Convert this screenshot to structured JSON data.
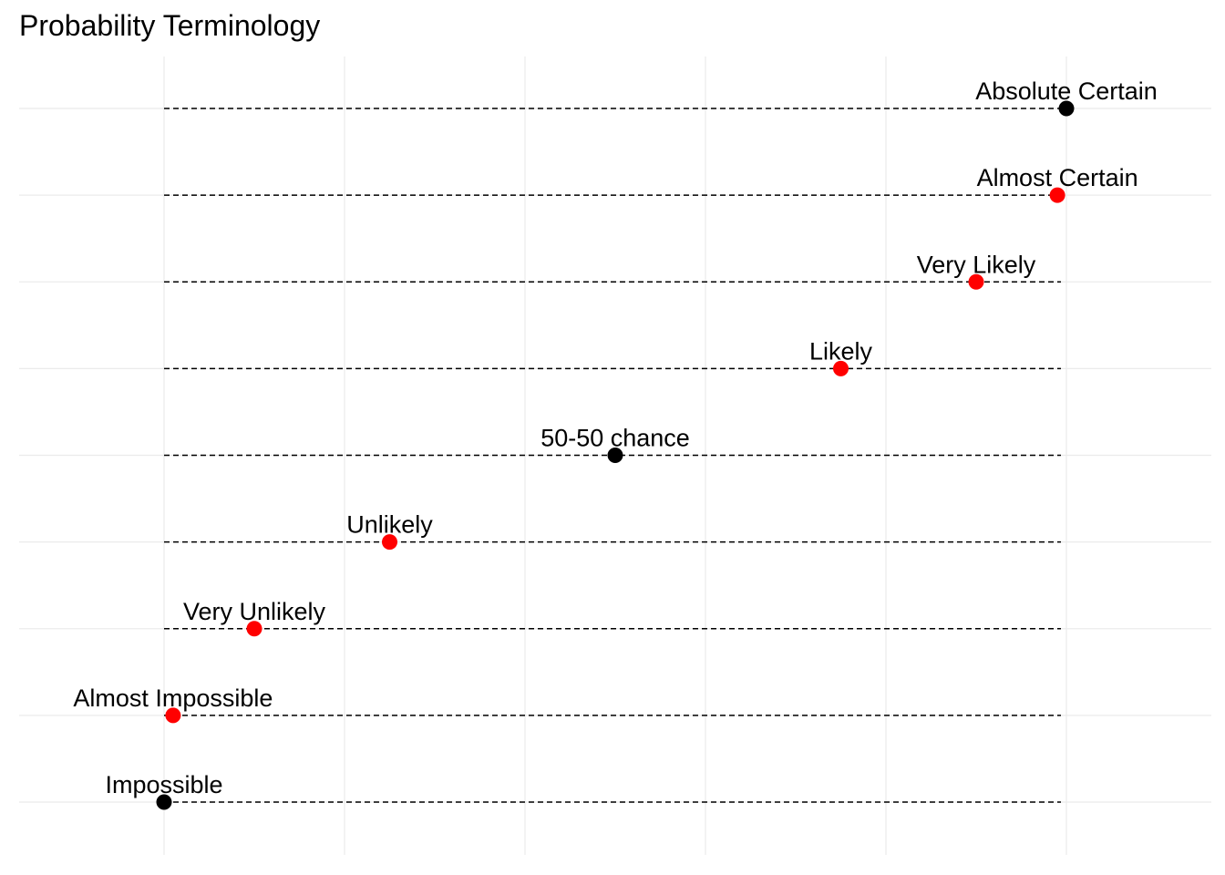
{
  "chart_data": {
    "type": "scatter",
    "title": "Probability Terminology",
    "xlabel": "",
    "ylabel": "",
    "xlim": [
      -0.08,
      1.08
    ],
    "grid": true,
    "guide_range": [
      0,
      1
    ],
    "highlight_color": "#ff0000",
    "anchor_color": "#000000",
    "grid_color": "#ebebeb",
    "points": [
      {
        "label": "Absolute Certain",
        "x": 1.0,
        "color": "#000000"
      },
      {
        "label": "Almost Certain",
        "x": 0.99,
        "color": "#ff0000"
      },
      {
        "label": "Very Likely",
        "x": 0.9,
        "color": "#ff0000"
      },
      {
        "label": "Likely",
        "x": 0.75,
        "color": "#ff0000"
      },
      {
        "label": "50-50 chance",
        "x": 0.5,
        "color": "#000000"
      },
      {
        "label": "Unlikely",
        "x": 0.25,
        "color": "#ff0000"
      },
      {
        "label": "Very Unlikely",
        "x": 0.1,
        "color": "#ff0000"
      },
      {
        "label": "Almost Impossible",
        "x": 0.01,
        "color": "#ff0000"
      },
      {
        "label": "Impossible",
        "x": 0.0,
        "color": "#000000"
      }
    ]
  }
}
